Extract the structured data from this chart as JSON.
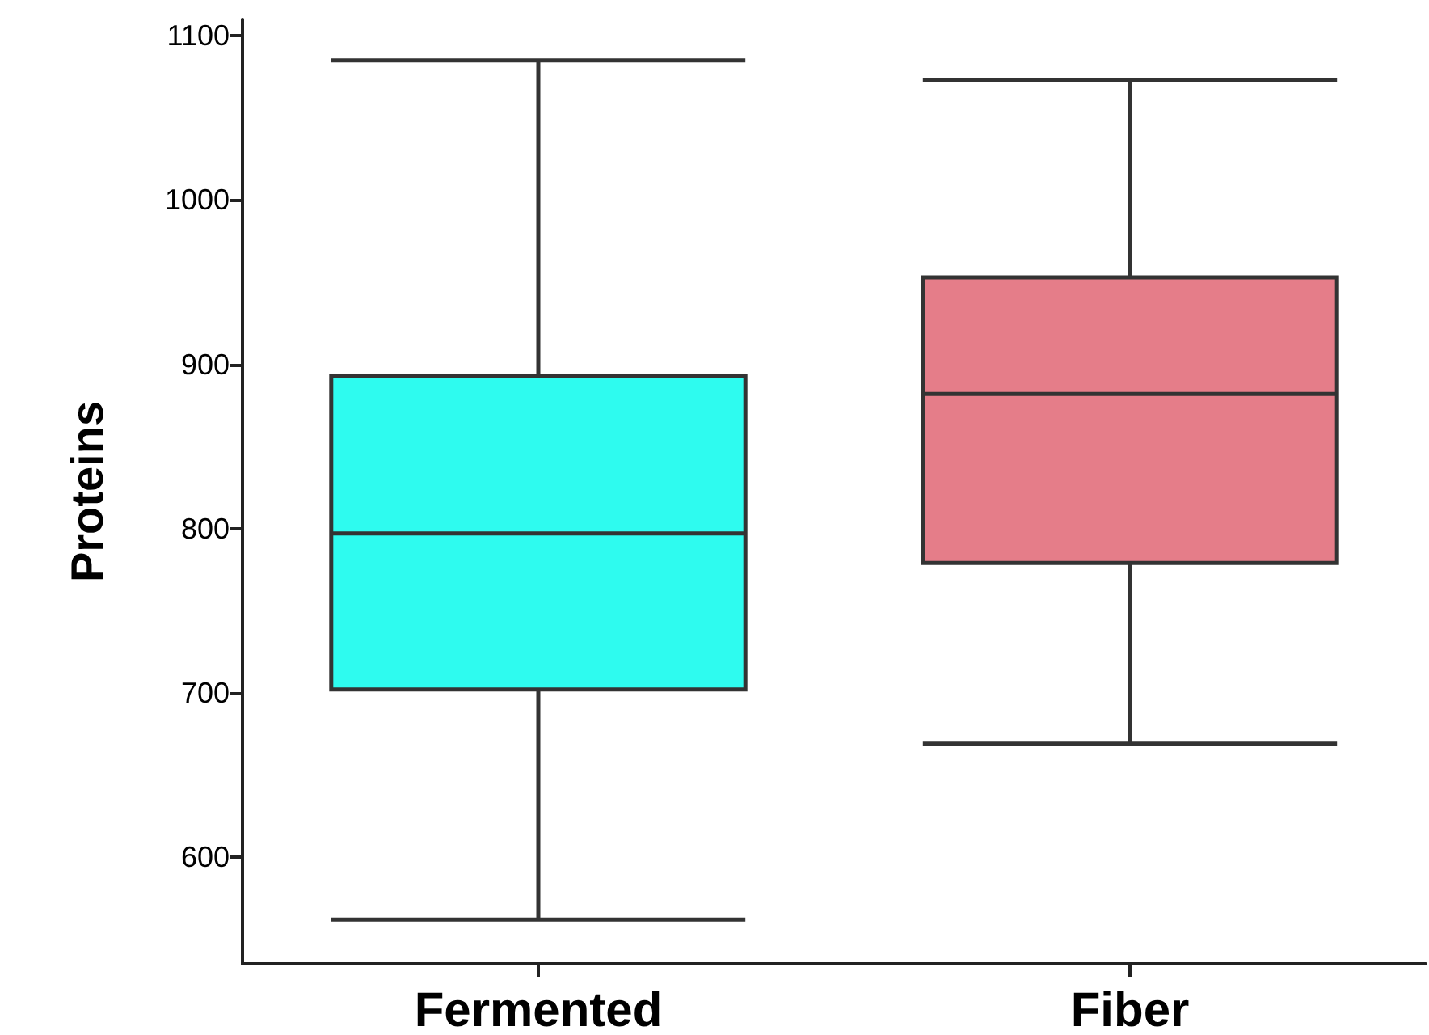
{
  "chart_data": {
    "type": "box",
    "ylabel": "Proteins",
    "categories": [
      "Fermented",
      "Fiber"
    ],
    "boxes": [
      {
        "low": 562,
        "q1": 702,
        "median": 797,
        "q3": 893,
        "high": 1085
      },
      {
        "low": 669,
        "q1": 779,
        "median": 882,
        "q3": 953,
        "high": 1073
      }
    ],
    "colors": [
      "#2efbef",
      "#e57d89"
    ],
    "ylim": [
      535,
      1110
    ],
    "yticks": [
      600,
      700,
      800,
      900,
      1000,
      1100
    ],
    "grid": false
  }
}
